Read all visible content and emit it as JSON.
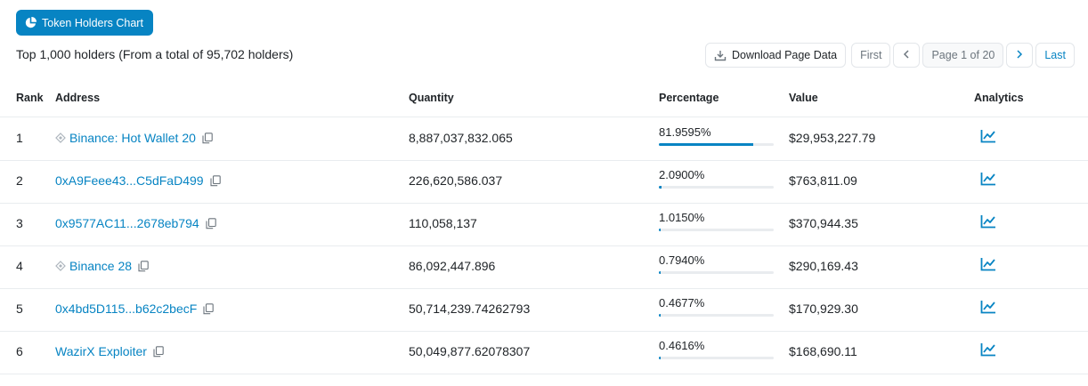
{
  "chart_button": {
    "label": "Token Holders Chart",
    "icon": "pie-chart-icon"
  },
  "summary": "Top 1,000 holders (From a total of 95,702 holders)",
  "toolbar": {
    "download_label": "Download Page Data",
    "first_label": "First",
    "page_label": "Page 1 of 20",
    "last_label": "Last"
  },
  "columns": {
    "rank": "Rank",
    "address": "Address",
    "quantity": "Quantity",
    "percentage": "Percentage",
    "value": "Value",
    "analytics": "Analytics"
  },
  "rows": [
    {
      "rank": "1",
      "address": "Binance: Hot Wallet 20",
      "tagged": true,
      "quantity": "8,887,037,832.065",
      "percentage": "81.9595%",
      "percentage_value": 81.9595,
      "value": "$29,953,227.79"
    },
    {
      "rank": "2",
      "address": "0xA9Feee43...C5dFaD499",
      "tagged": false,
      "quantity": "226,620,586.037",
      "percentage": "2.0900%",
      "percentage_value": 2.09,
      "value": "$763,811.09"
    },
    {
      "rank": "3",
      "address": "0x9577AC11...2678eb794",
      "tagged": false,
      "quantity": "110,058,137",
      "percentage": "1.0150%",
      "percentage_value": 1.015,
      "value": "$370,944.35"
    },
    {
      "rank": "4",
      "address": "Binance 28",
      "tagged": true,
      "quantity": "86,092,447.896",
      "percentage": "0.7940%",
      "percentage_value": 0.794,
      "value": "$290,169.43"
    },
    {
      "rank": "5",
      "address": "0x4bd5D115...b62c2becF",
      "tagged": false,
      "quantity": "50,714,239.74262793",
      "percentage": "0.4677%",
      "percentage_value": 0.4677,
      "value": "$170,929.30"
    },
    {
      "rank": "6",
      "address": "WazirX Exploiter",
      "tagged": false,
      "quantity": "50,049,877.62078307",
      "percentage": "0.4616%",
      "percentage_value": 0.4616,
      "value": "$168,690.11"
    }
  ],
  "colors": {
    "accent": "#0784c3",
    "border": "#e9ecef",
    "text": "#212529"
  }
}
